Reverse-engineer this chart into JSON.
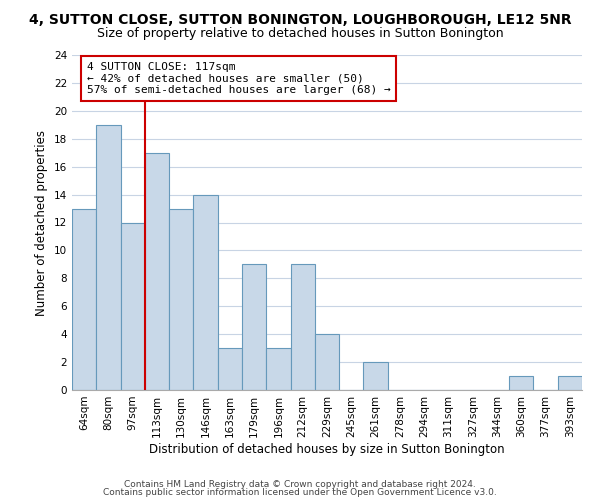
{
  "title": "4, SUTTON CLOSE, SUTTON BONINGTON, LOUGHBOROUGH, LE12 5NR",
  "subtitle": "Size of property relative to detached houses in Sutton Bonington",
  "xlabel": "Distribution of detached houses by size in Sutton Bonington",
  "ylabel": "Number of detached properties",
  "bin_labels": [
    "64sqm",
    "80sqm",
    "97sqm",
    "113sqm",
    "130sqm",
    "146sqm",
    "163sqm",
    "179sqm",
    "196sqm",
    "212sqm",
    "229sqm",
    "245sqm",
    "261sqm",
    "278sqm",
    "294sqm",
    "311sqm",
    "327sqm",
    "344sqm",
    "360sqm",
    "377sqm",
    "393sqm"
  ],
  "bar_values": [
    13,
    19,
    12,
    17,
    13,
    14,
    3,
    9,
    3,
    9,
    4,
    0,
    2,
    0,
    0,
    0,
    0,
    0,
    1,
    0,
    1
  ],
  "bar_color": "#c8d8e8",
  "bar_edge_color": "#6699bb",
  "vline_x_index": 3,
  "vline_color": "#cc0000",
  "annotation_line1": "4 SUTTON CLOSE: 117sqm",
  "annotation_line2": "← 42% of detached houses are smaller (50)",
  "annotation_line3": "57% of semi-detached houses are larger (68) →",
  "annotation_box_edgecolor": "#cc0000",
  "annotation_box_facecolor": "#ffffff",
  "ylim": [
    0,
    24
  ],
  "yticks": [
    0,
    2,
    4,
    6,
    8,
    10,
    12,
    14,
    16,
    18,
    20,
    22,
    24
  ],
  "footer_line1": "Contains HM Land Registry data © Crown copyright and database right 2024.",
  "footer_line2": "Contains public sector information licensed under the Open Government Licence v3.0.",
  "bg_color": "#ffffff",
  "grid_color": "#c8d4e4",
  "title_fontsize": 10,
  "subtitle_fontsize": 9,
  "axis_label_fontsize": 8.5,
  "tick_fontsize": 7.5,
  "annotation_fontsize": 8,
  "footer_fontsize": 6.5
}
